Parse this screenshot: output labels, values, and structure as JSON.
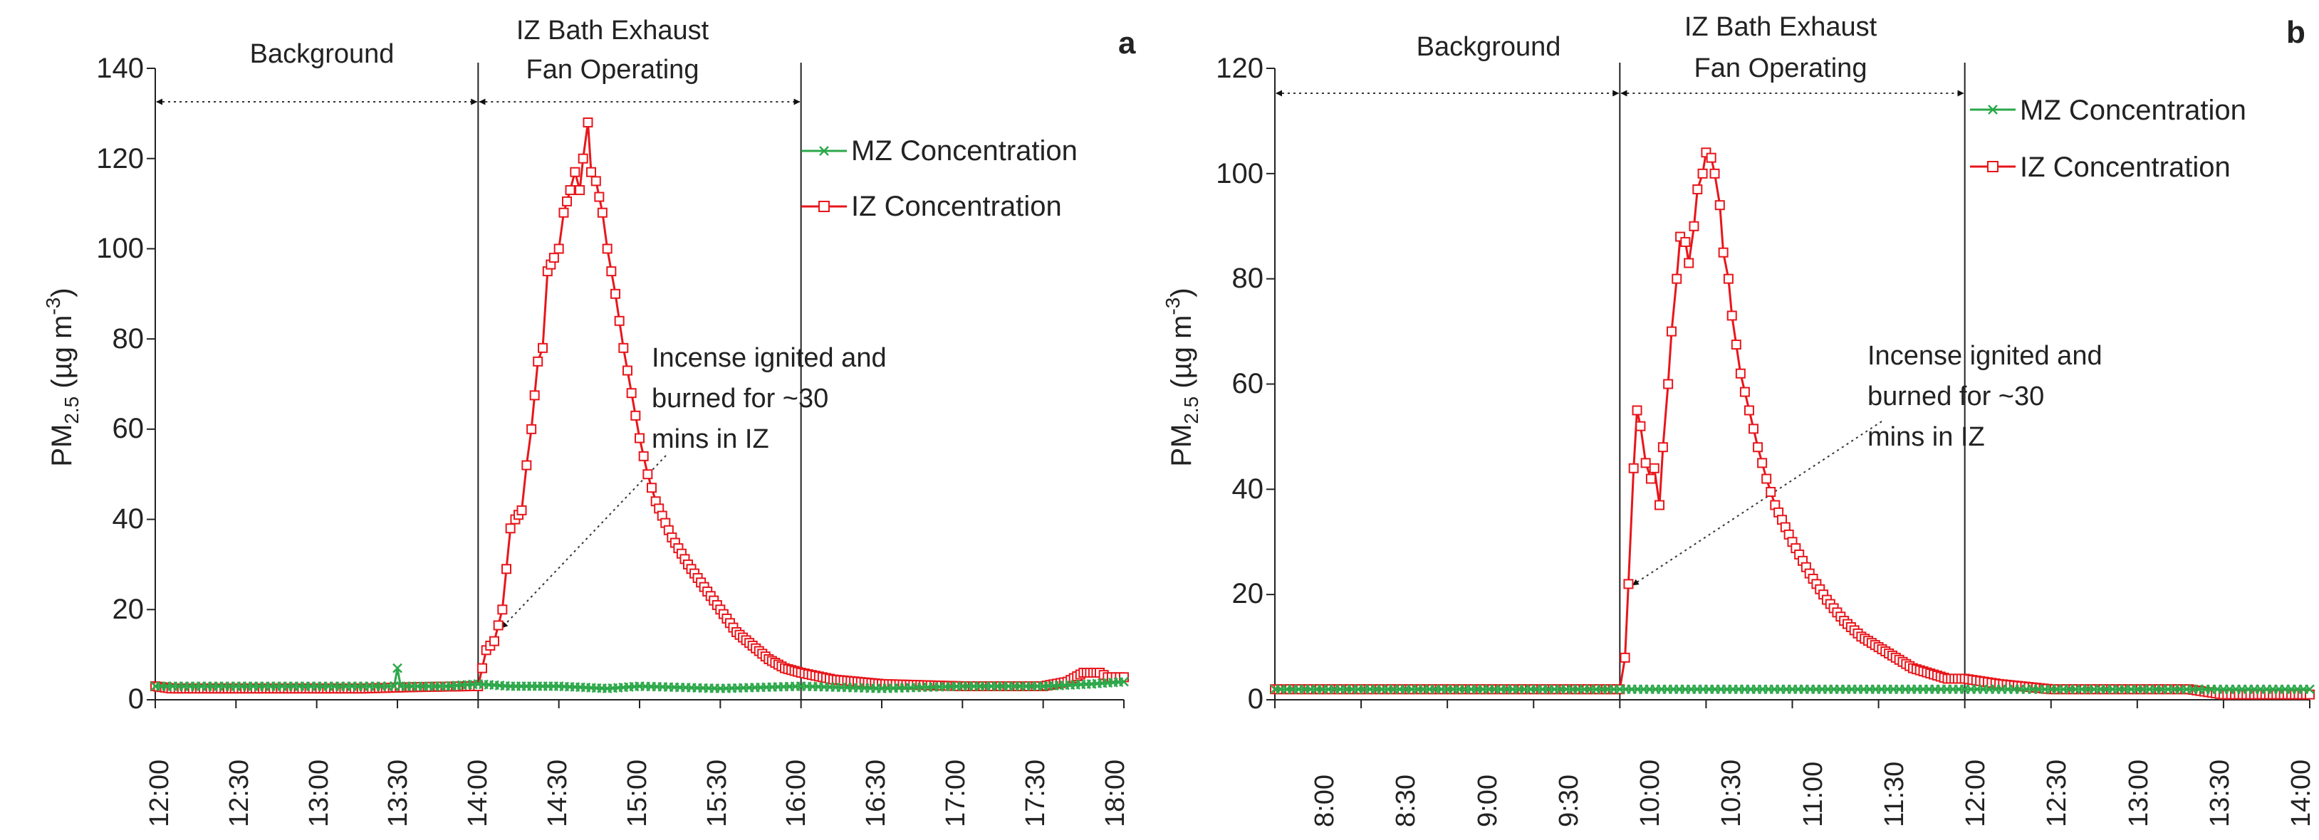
{
  "colors": {
    "iz": "#e8161b",
    "mz": "#2ca84a",
    "axis": "#222222",
    "guide": "#888888"
  },
  "chart_data": [
    {
      "type": "line",
      "panel": "a",
      "ylabel_main": "PM",
      "ylabel_sub": "2.5",
      "ylabel_unit": " (µg m",
      "ylabel_sup": "-3",
      "ylabel_close": ")",
      "ylim": [
        0,
        140
      ],
      "yticks": [
        0,
        20,
        40,
        60,
        80,
        100,
        120,
        140
      ],
      "x_range_hours": [
        12,
        18
      ],
      "xtick_hours": [
        12,
        12.5,
        13,
        13.5,
        14,
        14.5,
        15,
        15.5,
        16,
        16.5,
        17,
        17.5,
        18
      ],
      "xtick_labels": [
        "12:00",
        "12:30",
        "13:00",
        "13:30",
        "14:00",
        "14:30",
        "15:00",
        "15:30",
        "16:00",
        "16:30",
        "17:00",
        "17:30",
        "18:00"
      ],
      "legend": [
        "MZ Concentration",
        "IZ Concentration"
      ],
      "fan_on": 14.0,
      "fan_off": 16.0,
      "region_labels": {
        "background": "Background",
        "fan_line1": "IZ Bath Exhaust",
        "fan_line2": "Fan Operating"
      },
      "annotation": {
        "lines": [
          "Incense ignited and",
          "burned for ~30",
          "mins in IZ"
        ],
        "point": [
          14.12,
          15
        ]
      },
      "series": [
        {
          "name": "IZ Concentration",
          "points": [
            [
              12.0,
              3
            ],
            [
              12.1,
              2.5
            ],
            [
              12.3,
              2.5
            ],
            [
              12.6,
              2.5
            ],
            [
              13.0,
              2.5
            ],
            [
              13.3,
              2.5
            ],
            [
              13.6,
              2.8
            ],
            [
              13.95,
              3
            ],
            [
              14.0,
              3
            ],
            [
              14.05,
              11
            ],
            [
              14.1,
              13
            ],
            [
              14.15,
              20
            ],
            [
              14.2,
              38
            ],
            [
              14.23,
              40
            ],
            [
              14.27,
              42
            ],
            [
              14.3,
              52
            ],
            [
              14.33,
              60
            ],
            [
              14.37,
              75
            ],
            [
              14.4,
              78
            ],
            [
              14.43,
              95
            ],
            [
              14.47,
              98
            ],
            [
              14.5,
              100
            ],
            [
              14.53,
              108
            ],
            [
              14.57,
              113
            ],
            [
              14.6,
              117
            ],
            [
              14.63,
              113
            ],
            [
              14.65,
              120
            ],
            [
              14.68,
              128
            ],
            [
              14.7,
              117
            ],
            [
              14.73,
              115
            ],
            [
              14.77,
              108
            ],
            [
              14.8,
              100
            ],
            [
              14.85,
              90
            ],
            [
              14.9,
              78
            ],
            [
              14.95,
              68
            ],
            [
              15.0,
              58
            ],
            [
              15.05,
              50
            ],
            [
              15.1,
              44
            ],
            [
              15.2,
              36
            ],
            [
              15.3,
              30
            ],
            [
              15.4,
              25
            ],
            [
              15.5,
              20
            ],
            [
              15.6,
              15
            ],
            [
              15.7,
              12
            ],
            [
              15.8,
              9
            ],
            [
              15.9,
              7
            ],
            [
              16.0,
              6
            ],
            [
              16.2,
              4.5
            ],
            [
              16.5,
              3.5
            ],
            [
              17.0,
              3
            ],
            [
              17.3,
              3
            ],
            [
              17.5,
              3
            ],
            [
              17.65,
              4
            ],
            [
              17.75,
              6
            ],
            [
              17.85,
              6
            ],
            [
              17.9,
              5
            ],
            [
              17.95,
              5
            ],
            [
              18.0,
              5
            ]
          ]
        },
        {
          "name": "MZ Concentration",
          "points": [
            [
              12.0,
              3
            ],
            [
              12.5,
              3
            ],
            [
              13.0,
              3
            ],
            [
              13.4,
              3
            ],
            [
              13.48,
              3
            ],
            [
              13.5,
              7
            ],
            [
              13.52,
              3
            ],
            [
              13.8,
              3
            ],
            [
              14.0,
              3.5
            ],
            [
              14.2,
              3
            ],
            [
              14.5,
              3
            ],
            [
              14.8,
              2.5
            ],
            [
              15.0,
              3
            ],
            [
              15.5,
              2.5
            ],
            [
              16.0,
              3
            ],
            [
              16.5,
              2.5
            ],
            [
              17.0,
              3
            ],
            [
              17.5,
              3
            ],
            [
              17.8,
              3.5
            ],
            [
              18.0,
              4
            ]
          ]
        }
      ]
    },
    {
      "type": "line",
      "panel": "b",
      "ylabel_main": "PM",
      "ylabel_sub": "2.5",
      "ylabel_unit": " (µg m",
      "ylabel_sup": "-3",
      "ylabel_close": ")",
      "ylim": [
        0,
        120
      ],
      "yticks": [
        0,
        20,
        40,
        60,
        80,
        100,
        120
      ],
      "x_range_hours": [
        8,
        14
      ],
      "xtick_hours": [
        8,
        8.5,
        9,
        9.5,
        10,
        10.5,
        11,
        11.5,
        12,
        12.5,
        13,
        13.5,
        14
      ],
      "xtick_labels": [
        "8:00",
        "8:30",
        "9:00",
        "9:30",
        "10:00",
        "10:30",
        "11:00",
        "11:30",
        "12:00",
        "12:30",
        "13:00",
        "13:30",
        "14:00"
      ],
      "legend": [
        "MZ Concentration",
        "IZ Concentration"
      ],
      "fan_on": 10.0,
      "fan_off": 12.0,
      "region_labels": {
        "background": "Background",
        "fan_line1": "IZ Bath Exhaust",
        "fan_line2": "Fan Operating"
      },
      "annotation": {
        "lines": [
          "Incense ignited and",
          "burned for ~30",
          "mins in IZ"
        ],
        "point": [
          10.05,
          21
        ]
      },
      "series": [
        {
          "name": "IZ Concentration",
          "points": [
            [
              8.0,
              2
            ],
            [
              8.5,
              2
            ],
            [
              9.0,
              2
            ],
            [
              9.5,
              2
            ],
            [
              9.9,
              2
            ],
            [
              10.0,
              2
            ],
            [
              10.03,
              8
            ],
            [
              10.05,
              22
            ],
            [
              10.08,
              44
            ],
            [
              10.1,
              55
            ],
            [
              10.12,
              52
            ],
            [
              10.15,
              45
            ],
            [
              10.18,
              42
            ],
            [
              10.2,
              44
            ],
            [
              10.23,
              37
            ],
            [
              10.25,
              48
            ],
            [
              10.28,
              60
            ],
            [
              10.3,
              70
            ],
            [
              10.33,
              80
            ],
            [
              10.35,
              88
            ],
            [
              10.38,
              87
            ],
            [
              10.4,
              83
            ],
            [
              10.43,
              90
            ],
            [
              10.45,
              97
            ],
            [
              10.48,
              100
            ],
            [
              10.5,
              104
            ],
            [
              10.53,
              103
            ],
            [
              10.55,
              100
            ],
            [
              10.58,
              94
            ],
            [
              10.6,
              85
            ],
            [
              10.63,
              80
            ],
            [
              10.65,
              73
            ],
            [
              10.7,
              62
            ],
            [
              10.75,
              55
            ],
            [
              10.8,
              48
            ],
            [
              10.85,
              42
            ],
            [
              10.9,
              37
            ],
            [
              11.0,
              30
            ],
            [
              11.1,
              24
            ],
            [
              11.2,
              19
            ],
            [
              11.3,
              15
            ],
            [
              11.4,
              12
            ],
            [
              11.5,
              10
            ],
            [
              11.6,
              8
            ],
            [
              11.7,
              6
            ],
            [
              11.8,
              5
            ],
            [
              11.9,
              4
            ],
            [
              12.0,
              4
            ],
            [
              12.2,
              3
            ],
            [
              12.5,
              2
            ],
            [
              13.0,
              2
            ],
            [
              13.3,
              2
            ],
            [
              13.5,
              1
            ],
            [
              13.7,
              1
            ],
            [
              14.0,
              1
            ]
          ]
        },
        {
          "name": "MZ Concentration",
          "points": [
            [
              8.0,
              2
            ],
            [
              9.0,
              2
            ],
            [
              10.0,
              2
            ],
            [
              11.0,
              2
            ],
            [
              12.0,
              2
            ],
            [
              12.5,
              2
            ],
            [
              13.0,
              2
            ],
            [
              13.5,
              2
            ],
            [
              14.0,
              2
            ]
          ]
        }
      ]
    }
  ]
}
